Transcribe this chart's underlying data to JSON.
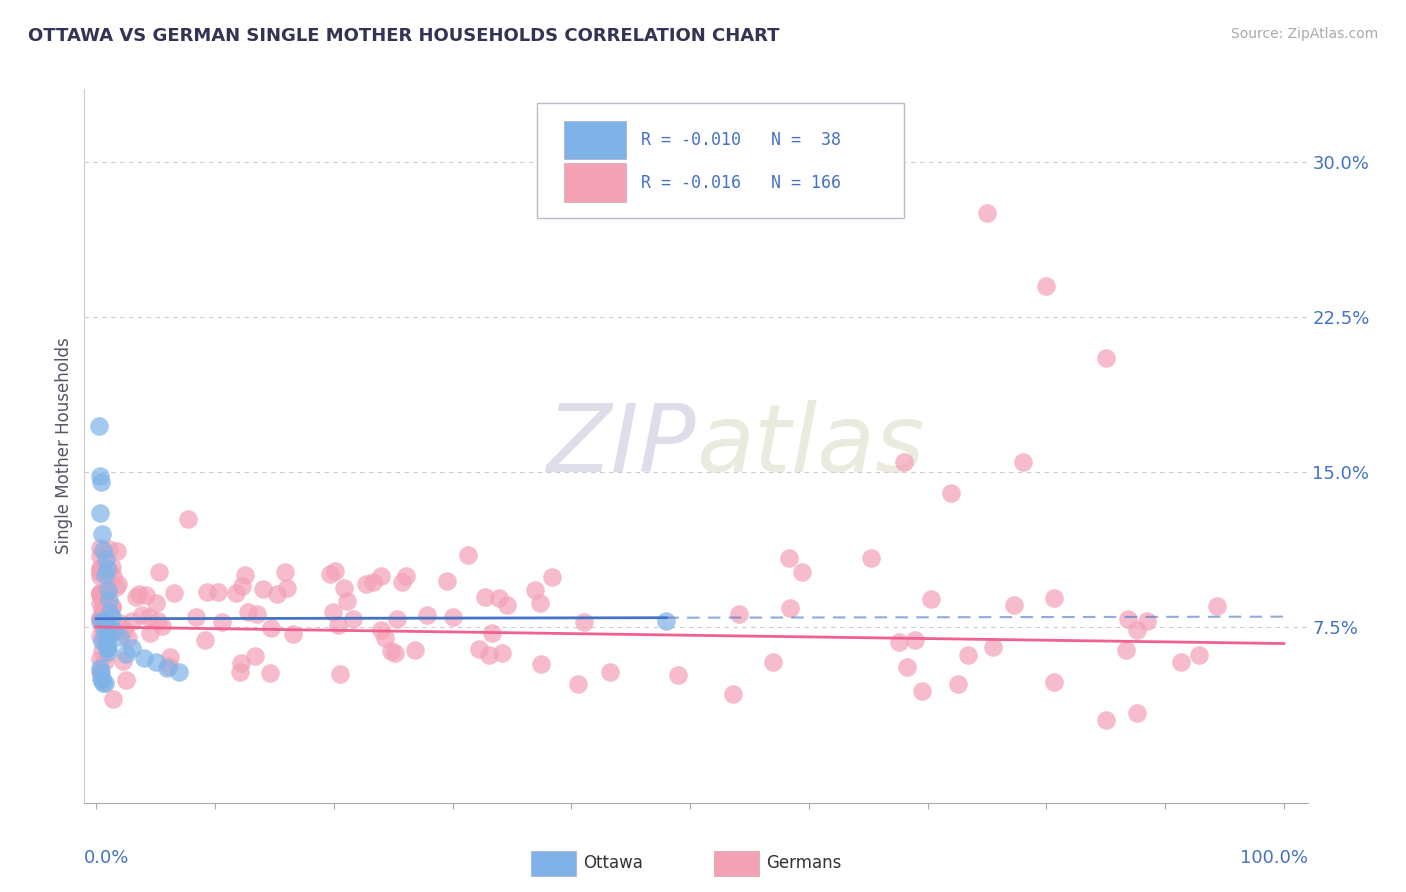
{
  "title": "OTTAWA VS GERMAN SINGLE MOTHER HOUSEHOLDS CORRELATION CHART",
  "source": "Source: ZipAtlas.com",
  "ylabel": "Single Mother Households",
  "legend_ottawa_R": "-0.010",
  "legend_ottawa_N": "38",
  "legend_german_R": "-0.016",
  "legend_german_N": "166",
  "ottawa_color": "#7fb3e8",
  "german_color": "#f4a0b5",
  "ottawa_line_color": "#4472c4",
  "german_line_color": "#f06090",
  "background_color": "#ffffff",
  "grid_color": "#cccccc",
  "title_color": "#333355",
  "tick_label_color": "#4472c4",
  "watermark_zip_color": "#c8c8dc",
  "watermark_atlas_color": "#dcdcc8"
}
